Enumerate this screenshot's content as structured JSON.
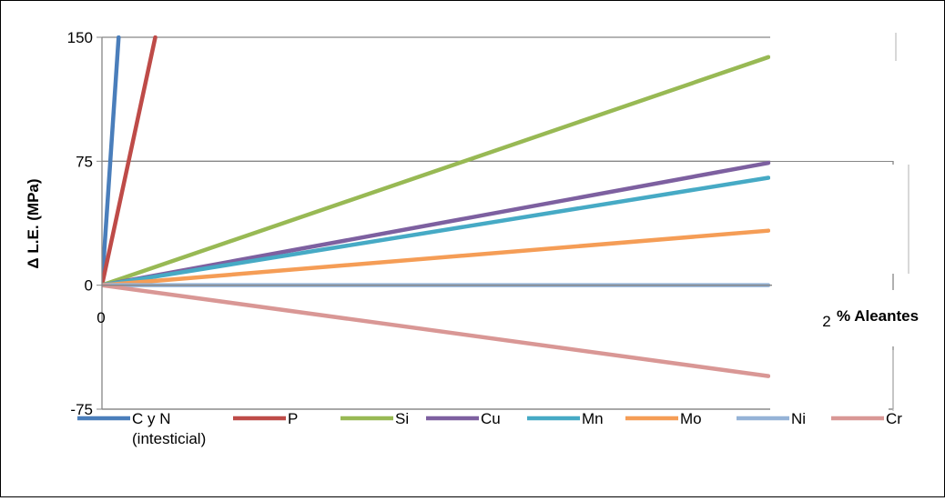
{
  "chart_data": {
    "type": "line",
    "title": "",
    "xlabel": "% Aleantes",
    "ylabel": "Δ L.E. (MPa)",
    "x_tick_labels": [
      "0",
      "2"
    ],
    "xlim": [
      0,
      2
    ],
    "y_ticks": [
      150,
      75,
      0,
      -75
    ],
    "ylim": [
      -75,
      150
    ],
    "grid": "horizontal",
    "legend_position": "bottom",
    "series": [
      {
        "name": "C y N",
        "name_line2": "(intesticial)",
        "color": "#4a7ebb",
        "x": [
          0,
          0.05
        ],
        "y": [
          0,
          150
        ]
      },
      {
        "name": "P",
        "color": "#be4b48",
        "x": [
          0,
          0.16
        ],
        "y": [
          0,
          150
        ]
      },
      {
        "name": "Si",
        "color": "#98b954",
        "x": [
          0,
          2
        ],
        "y": [
          0,
          138
        ]
      },
      {
        "name": "Cu",
        "color": "#7d60a0",
        "x": [
          0,
          2
        ],
        "y": [
          0,
          74
        ]
      },
      {
        "name": "Mn",
        "color": "#46aac5",
        "x": [
          0,
          2
        ],
        "y": [
          0,
          65
        ]
      },
      {
        "name": "Mo",
        "color": "#f59d56",
        "x": [
          0,
          2
        ],
        "y": [
          0,
          33
        ]
      },
      {
        "name": "Ni",
        "color": "#95b3d7",
        "x": [
          0,
          2
        ],
        "y": [
          0,
          0
        ]
      },
      {
        "name": "Cr",
        "color": "#d99795",
        "x": [
          0,
          2
        ],
        "y": [
          0,
          -55
        ]
      }
    ]
  }
}
